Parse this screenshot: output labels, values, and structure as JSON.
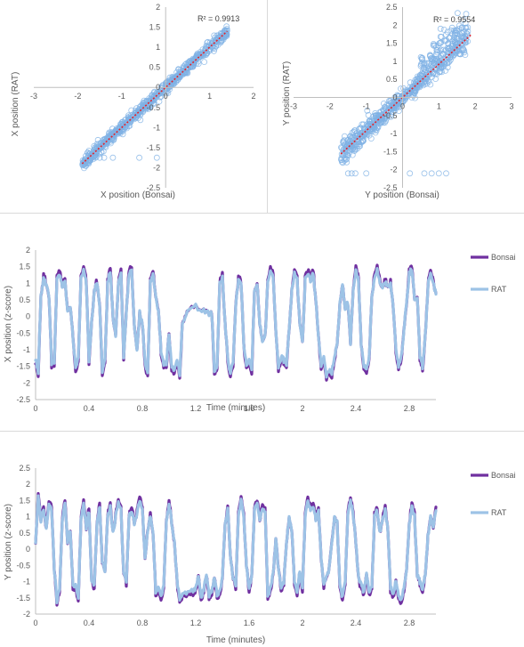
{
  "chart_data": [
    {
      "type": "scatter",
      "xlabel": "X position (Bonsai)",
      "ylabel": "X position (RAT)",
      "annotation": "R² = 0.9913",
      "xlim": [
        -3,
        2
      ],
      "ylim": [
        -2.5,
        2
      ],
      "x_ticks": [
        "-3",
        "-2",
        "-1",
        "0",
        "1",
        "2"
      ],
      "y_ticks": [
        "-2.5",
        "-2",
        "-1.5",
        "-1",
        "-0.5",
        "0",
        "0.5",
        "1",
        "1.5",
        "2"
      ],
      "trendline": {
        "slope": 1.0,
        "intercept": 0.0,
        "x_range": [
          -1.9,
          1.4
        ]
      },
      "scatter_cloud": {
        "slope": 1.0,
        "x_range": [
          -1.9,
          1.4
        ],
        "spread": 0.07
      },
      "outliers": [
        [
          -1.7,
          -1.75
        ],
        [
          -1.6,
          -1.75
        ],
        [
          -1.5,
          -1.75
        ],
        [
          -1.4,
          -1.75
        ],
        [
          -1.2,
          -1.75
        ],
        [
          -0.6,
          -1.75
        ],
        [
          -0.2,
          -1.75
        ]
      ],
      "marker_color": "#7fb2e5",
      "trend_color": "#e3242b"
    },
    {
      "type": "scatter",
      "xlabel": "Y position (Bonsai)",
      "ylabel": "Y position (RAT)",
      "annotation": "R² = 0.9554",
      "xlim": [
        -3,
        3
      ],
      "ylim": [
        -2.5,
        2.5
      ],
      "x_ticks": [
        "-3",
        "-2",
        "-1",
        "0",
        "1",
        "2",
        "3"
      ],
      "y_ticks": [
        "-2.5",
        "-2",
        "-1.5",
        "-1",
        "-0.5",
        "0",
        "0.5",
        "1",
        "1.5",
        "2",
        "2.5"
      ],
      "trendline": {
        "slope": 0.92,
        "intercept": 0.0,
        "x_range": [
          -1.7,
          1.9
        ]
      },
      "scatter_cloud": {
        "slope": 0.92,
        "x_range": [
          -1.7,
          1.8
        ],
        "spread": 0.16
      },
      "outliers": [
        [
          -1.5,
          -2.1
        ],
        [
          -1.4,
          -2.1
        ],
        [
          -1.3,
          -2.1
        ],
        [
          -1.0,
          -2.1
        ],
        [
          0.2,
          -2.1
        ],
        [
          0.6,
          -2.1
        ],
        [
          0.8,
          -2.1
        ],
        [
          1.0,
          -2.1
        ],
        [
          1.2,
          -2.1
        ],
        [
          1.5,
          1.3
        ],
        [
          1.6,
          1.2
        ],
        [
          1.7,
          1.25
        ]
      ],
      "marker_color": "#7fb2e5",
      "trend_color": "#e3242b"
    },
    {
      "type": "line",
      "xlabel": "Time (minutes)",
      "ylabel": "X position (z-score)",
      "xlim": [
        0,
        3
      ],
      "ylim": [
        -2.5,
        2
      ],
      "x_ticks": [
        "0",
        "0.4",
        "0.8",
        "1.2",
        "1.6",
        "2",
        "2.4",
        "2.8"
      ],
      "y_ticks": [
        "-2.5",
        "-2",
        "-1.5",
        "-1",
        "-0.5",
        "0",
        "0.5",
        "1",
        "1.5",
        "2"
      ],
      "legend_position": "right",
      "series": [
        {
          "name": "Bonsai",
          "color": "#7030a0",
          "width": 3.2
        },
        {
          "name": "RAT",
          "color": "#9dc3e6",
          "width": 3.2
        }
      ],
      "keyframes": [
        [
          0.0,
          -1.3
        ],
        [
          0.02,
          -1.65
        ],
        [
          0.04,
          0.6
        ],
        [
          0.06,
          1.15
        ],
        [
          0.08,
          1.0
        ],
        [
          0.1,
          0.6
        ],
        [
          0.12,
          -1.4
        ],
        [
          0.14,
          -1.4
        ],
        [
          0.16,
          1.1
        ],
        [
          0.18,
          1.3
        ],
        [
          0.2,
          0.9
        ],
        [
          0.22,
          1.0
        ],
        [
          0.24,
          0.2
        ],
        [
          0.26,
          0.3
        ],
        [
          0.28,
          -0.6
        ],
        [
          0.3,
          -1.6
        ],
        [
          0.32,
          -1.2
        ],
        [
          0.34,
          1.1
        ],
        [
          0.36,
          1.4
        ],
        [
          0.38,
          1.0
        ],
        [
          0.4,
          -1.3
        ],
        [
          0.42,
          -0.2
        ],
        [
          0.44,
          0.8
        ],
        [
          0.46,
          1.0
        ],
        [
          0.48,
          0.4
        ],
        [
          0.5,
          -1.7
        ],
        [
          0.52,
          -1.3
        ],
        [
          0.54,
          1.0
        ],
        [
          0.56,
          1.4
        ],
        [
          0.58,
          0.0
        ],
        [
          0.6,
          -0.6
        ],
        [
          0.62,
          1.0
        ],
        [
          0.64,
          1.3
        ],
        [
          0.66,
          -1.2
        ],
        [
          0.68,
          0.2
        ],
        [
          0.7,
          1.3
        ],
        [
          0.72,
          1.4
        ],
        [
          0.74,
          -0.3
        ],
        [
          0.76,
          -1.0
        ],
        [
          0.78,
          0.1
        ],
        [
          0.8,
          -0.2
        ],
        [
          0.82,
          -1.4
        ],
        [
          0.84,
          -1.7
        ],
        [
          0.86,
          1.0
        ],
        [
          0.88,
          1.3
        ],
        [
          0.9,
          0.6
        ],
        [
          0.92,
          0.2
        ],
        [
          0.94,
          -1.0
        ],
        [
          0.96,
          -1.4
        ],
        [
          0.98,
          -1.4
        ],
        [
          1.0,
          -0.5
        ],
        [
          1.02,
          -1.5
        ],
        [
          1.04,
          -1.6
        ],
        [
          1.06,
          -1.3
        ],
        [
          1.08,
          -1.7
        ],
        [
          1.1,
          -0.2
        ],
        [
          1.12,
          0.0
        ],
        [
          1.14,
          0.2
        ],
        [
          1.2,
          0.3
        ],
        [
          1.26,
          0.2
        ],
        [
          1.3,
          0.1
        ],
        [
          1.32,
          0.1
        ],
        [
          1.34,
          -1.6
        ],
        [
          1.36,
          -1.5
        ],
        [
          1.38,
          1.0
        ],
        [
          1.4,
          1.2
        ],
        [
          1.42,
          -0.2
        ],
        [
          1.44,
          -1.3
        ],
        [
          1.46,
          -1.7
        ],
        [
          1.48,
          -1.4
        ],
        [
          1.5,
          0.4
        ],
        [
          1.52,
          1.1
        ],
        [
          1.54,
          1.0
        ],
        [
          1.56,
          -0.8
        ],
        [
          1.58,
          -1.5
        ],
        [
          1.6,
          -1.3
        ],
        [
          1.62,
          -1.6
        ],
        [
          1.64,
          0.8
        ],
        [
          1.66,
          1.0
        ],
        [
          1.68,
          -0.2
        ],
        [
          1.7,
          -0.8
        ],
        [
          1.72,
          -0.6
        ],
        [
          1.74,
          1.0
        ],
        [
          1.76,
          1.4
        ],
        [
          1.78,
          1.2
        ],
        [
          1.8,
          -0.4
        ],
        [
          1.82,
          -1.5
        ],
        [
          1.84,
          -1.2
        ],
        [
          1.86,
          -1.3
        ],
        [
          1.88,
          -1.4
        ],
        [
          1.9,
          -0.4
        ],
        [
          1.92,
          0.8
        ],
        [
          1.94,
          1.3
        ],
        [
          1.96,
          1.1
        ],
        [
          1.98,
          -0.2
        ],
        [
          2.0,
          -0.8
        ],
        [
          2.02,
          1.1
        ],
        [
          2.04,
          1.3
        ],
        [
          2.06,
          1.1
        ],
        [
          2.08,
          1.3
        ],
        [
          2.1,
          0.5
        ],
        [
          2.12,
          -0.6
        ],
        [
          2.14,
          -1.5
        ],
        [
          2.16,
          -1.2
        ],
        [
          2.18,
          -1.8
        ],
        [
          2.2,
          -1.6
        ],
        [
          2.22,
          -1.7
        ],
        [
          2.24,
          -1.2
        ],
        [
          2.26,
          -0.8
        ],
        [
          2.28,
          0.4
        ],
        [
          2.3,
          1.0
        ],
        [
          2.32,
          0.2
        ],
        [
          2.34,
          0.4
        ],
        [
          2.36,
          -0.8
        ],
        [
          2.38,
          0.8
        ],
        [
          2.4,
          1.4
        ],
        [
          2.42,
          1.1
        ],
        [
          2.44,
          -0.9
        ],
        [
          2.46,
          -1.5
        ],
        [
          2.48,
          -1.6
        ],
        [
          2.5,
          -1.2
        ],
        [
          2.52,
          0.6
        ],
        [
          2.54,
          1.2
        ],
        [
          2.56,
          1.4
        ],
        [
          2.58,
          1.0
        ],
        [
          2.6,
          0.9
        ],
        [
          2.62,
          1.0
        ],
        [
          2.64,
          0.9
        ],
        [
          2.66,
          1.0
        ],
        [
          2.68,
          0.3
        ],
        [
          2.7,
          -1.0
        ],
        [
          2.72,
          -1.5
        ],
        [
          2.74,
          -1.2
        ],
        [
          2.76,
          -0.4
        ],
        [
          2.78,
          0.4
        ],
        [
          2.8,
          1.3
        ],
        [
          2.82,
          1.4
        ],
        [
          2.84,
          0.5
        ],
        [
          2.86,
          0.6
        ],
        [
          2.88,
          -1.2
        ],
        [
          2.9,
          -1.5
        ],
        [
          2.92,
          -0.6
        ],
        [
          2.94,
          0.9
        ],
        [
          2.96,
          1.3
        ],
        [
          2.98,
          1.0
        ],
        [
          3.0,
          0.7
        ]
      ]
    },
    {
      "type": "line",
      "xlabel": "Time (minutes)",
      "ylabel": "Y position (z-score)",
      "xlim": [
        0,
        3
      ],
      "ylim": [
        -2,
        2.5
      ],
      "x_ticks": [
        "0",
        "0.4",
        "0.8",
        "1.2",
        "1.6",
        "2",
        "2.4",
        "2.8"
      ],
      "y_ticks": [
        "-2",
        "-1.5",
        "-1",
        "-0.5",
        "0",
        "0.5",
        "1",
        "1.5",
        "2",
        "2.5"
      ],
      "legend_position": "right",
      "series": [
        {
          "name": "Bonsai",
          "color": "#7030a0",
          "width": 3.2
        },
        {
          "name": "RAT",
          "color": "#9dc3e6",
          "width": 3.2
        }
      ],
      "keyframes": [
        [
          0.0,
          0.2
        ],
        [
          0.02,
          1.6
        ],
        [
          0.04,
          0.9
        ],
        [
          0.06,
          1.2
        ],
        [
          0.08,
          0.6
        ],
        [
          0.1,
          1.4
        ],
        [
          0.12,
          1.2
        ],
        [
          0.14,
          -0.6
        ],
        [
          0.16,
          -1.6
        ],
        [
          0.18,
          -1.2
        ],
        [
          0.2,
          0.9
        ],
        [
          0.22,
          1.4
        ],
        [
          0.24,
          0.2
        ],
        [
          0.26,
          0.6
        ],
        [
          0.28,
          -1.2
        ],
        [
          0.3,
          -1.1
        ],
        [
          0.32,
          -1.5
        ],
        [
          0.34,
          0.9
        ],
        [
          0.36,
          1.4
        ],
        [
          0.38,
          0.6
        ],
        [
          0.4,
          1.2
        ],
        [
          0.42,
          -1.0
        ],
        [
          0.44,
          -1.1
        ],
        [
          0.46,
          0.8
        ],
        [
          0.48,
          1.3
        ],
        [
          0.5,
          -0.4
        ],
        [
          0.52,
          -0.7
        ],
        [
          0.54,
          1.0
        ],
        [
          0.56,
          1.3
        ],
        [
          0.58,
          0.5
        ],
        [
          0.6,
          1.0
        ],
        [
          0.62,
          1.4
        ],
        [
          0.64,
          1.2
        ],
        [
          0.66,
          -0.8
        ],
        [
          0.68,
          -1.0
        ],
        [
          0.7,
          1.0
        ],
        [
          0.72,
          1.2
        ],
        [
          0.74,
          0.8
        ],
        [
          0.76,
          1.1
        ],
        [
          0.78,
          1.5
        ],
        [
          0.8,
          1.2
        ],
        [
          0.82,
          -0.3
        ],
        [
          0.84,
          0.6
        ],
        [
          0.86,
          1.0
        ],
        [
          0.88,
          0.5
        ],
        [
          0.9,
          -1.3
        ],
        [
          0.92,
          -1.2
        ],
        [
          0.94,
          -1.5
        ],
        [
          0.96,
          -1.1
        ],
        [
          0.98,
          0.9
        ],
        [
          1.0,
          1.4
        ],
        [
          1.02,
          0.8
        ],
        [
          1.04,
          0.2
        ],
        [
          1.06,
          -1.0
        ],
        [
          1.08,
          -1.5
        ],
        [
          1.1,
          -1.4
        ],
        [
          1.14,
          -1.3
        ],
        [
          1.18,
          -1.3
        ],
        [
          1.2,
          -1.2
        ],
        [
          1.22,
          -0.8
        ],
        [
          1.24,
          -1.5
        ],
        [
          1.26,
          -1.2
        ],
        [
          1.28,
          -0.8
        ],
        [
          1.3,
          -1.4
        ],
        [
          1.32,
          -1.3
        ],
        [
          1.34,
          -0.9
        ],
        [
          1.36,
          -1.4
        ],
        [
          1.38,
          -1.3
        ],
        [
          1.4,
          -0.9
        ],
        [
          1.42,
          0.8
        ],
        [
          1.44,
          1.2
        ],
        [
          1.46,
          -0.2
        ],
        [
          1.48,
          -0.9
        ],
        [
          1.5,
          -1.1
        ],
        [
          1.52,
          1.1
        ],
        [
          1.54,
          1.5
        ],
        [
          1.56,
          1.0
        ],
        [
          1.58,
          -0.5
        ],
        [
          1.6,
          -1.2
        ],
        [
          1.62,
          -0.8
        ],
        [
          1.64,
          1.2
        ],
        [
          1.66,
          1.4
        ],
        [
          1.68,
          0.9
        ],
        [
          1.7,
          1.3
        ],
        [
          1.72,
          1.2
        ],
        [
          1.74,
          -1.4
        ],
        [
          1.76,
          -1.2
        ],
        [
          1.78,
          -0.8
        ],
        [
          1.8,
          0.3
        ],
        [
          1.82,
          -0.6
        ],
        [
          1.84,
          -1.2
        ],
        [
          1.86,
          -1.0
        ],
        [
          1.88,
          0.2
        ],
        [
          1.9,
          1.0
        ],
        [
          1.92,
          0.6
        ],
        [
          1.94,
          -1.0
        ],
        [
          1.96,
          -1.3
        ],
        [
          1.98,
          -0.7
        ],
        [
          2.0,
          -1.2
        ],
        [
          2.02,
          1.0
        ],
        [
          2.04,
          1.5
        ],
        [
          2.06,
          1.2
        ],
        [
          2.08,
          1.3
        ],
        [
          2.1,
          0.9
        ],
        [
          2.12,
          1.2
        ],
        [
          2.14,
          -0.3
        ],
        [
          2.16,
          -1.1
        ],
        [
          2.18,
          -0.9
        ],
        [
          2.2,
          -0.6
        ],
        [
          2.22,
          0.2
        ],
        [
          2.24,
          1.0
        ],
        [
          2.26,
          0.8
        ],
        [
          2.28,
          -1.1
        ],
        [
          2.3,
          -1.5
        ],
        [
          2.32,
          -1.0
        ],
        [
          2.34,
          1.1
        ],
        [
          2.36,
          1.5
        ],
        [
          2.38,
          1.1
        ],
        [
          2.4,
          0.2
        ],
        [
          2.42,
          -0.9
        ],
        [
          2.44,
          -1.1
        ],
        [
          2.46,
          -1.3
        ],
        [
          2.48,
          -0.8
        ],
        [
          2.5,
          -1.3
        ],
        [
          2.52,
          -1.1
        ],
        [
          2.54,
          1.0
        ],
        [
          2.56,
          1.2
        ],
        [
          2.58,
          0.5
        ],
        [
          2.6,
          0.9
        ],
        [
          2.62,
          1.2
        ],
        [
          2.64,
          0.6
        ],
        [
          2.66,
          -1.2
        ],
        [
          2.68,
          -1.4
        ],
        [
          2.7,
          -0.9
        ],
        [
          2.72,
          -1.4
        ],
        [
          2.74,
          -1.6
        ],
        [
          2.76,
          -1.2
        ],
        [
          2.78,
          -0.6
        ],
        [
          2.8,
          0.8
        ],
        [
          2.82,
          1.3
        ],
        [
          2.84,
          1.0
        ],
        [
          2.86,
          -0.8
        ],
        [
          2.88,
          -1.0
        ],
        [
          2.9,
          -1.2
        ],
        [
          2.92,
          -0.8
        ],
        [
          2.94,
          0.4
        ],
        [
          2.96,
          1.0
        ],
        [
          2.98,
          0.7
        ],
        [
          3.0,
          1.2
        ]
      ]
    }
  ]
}
